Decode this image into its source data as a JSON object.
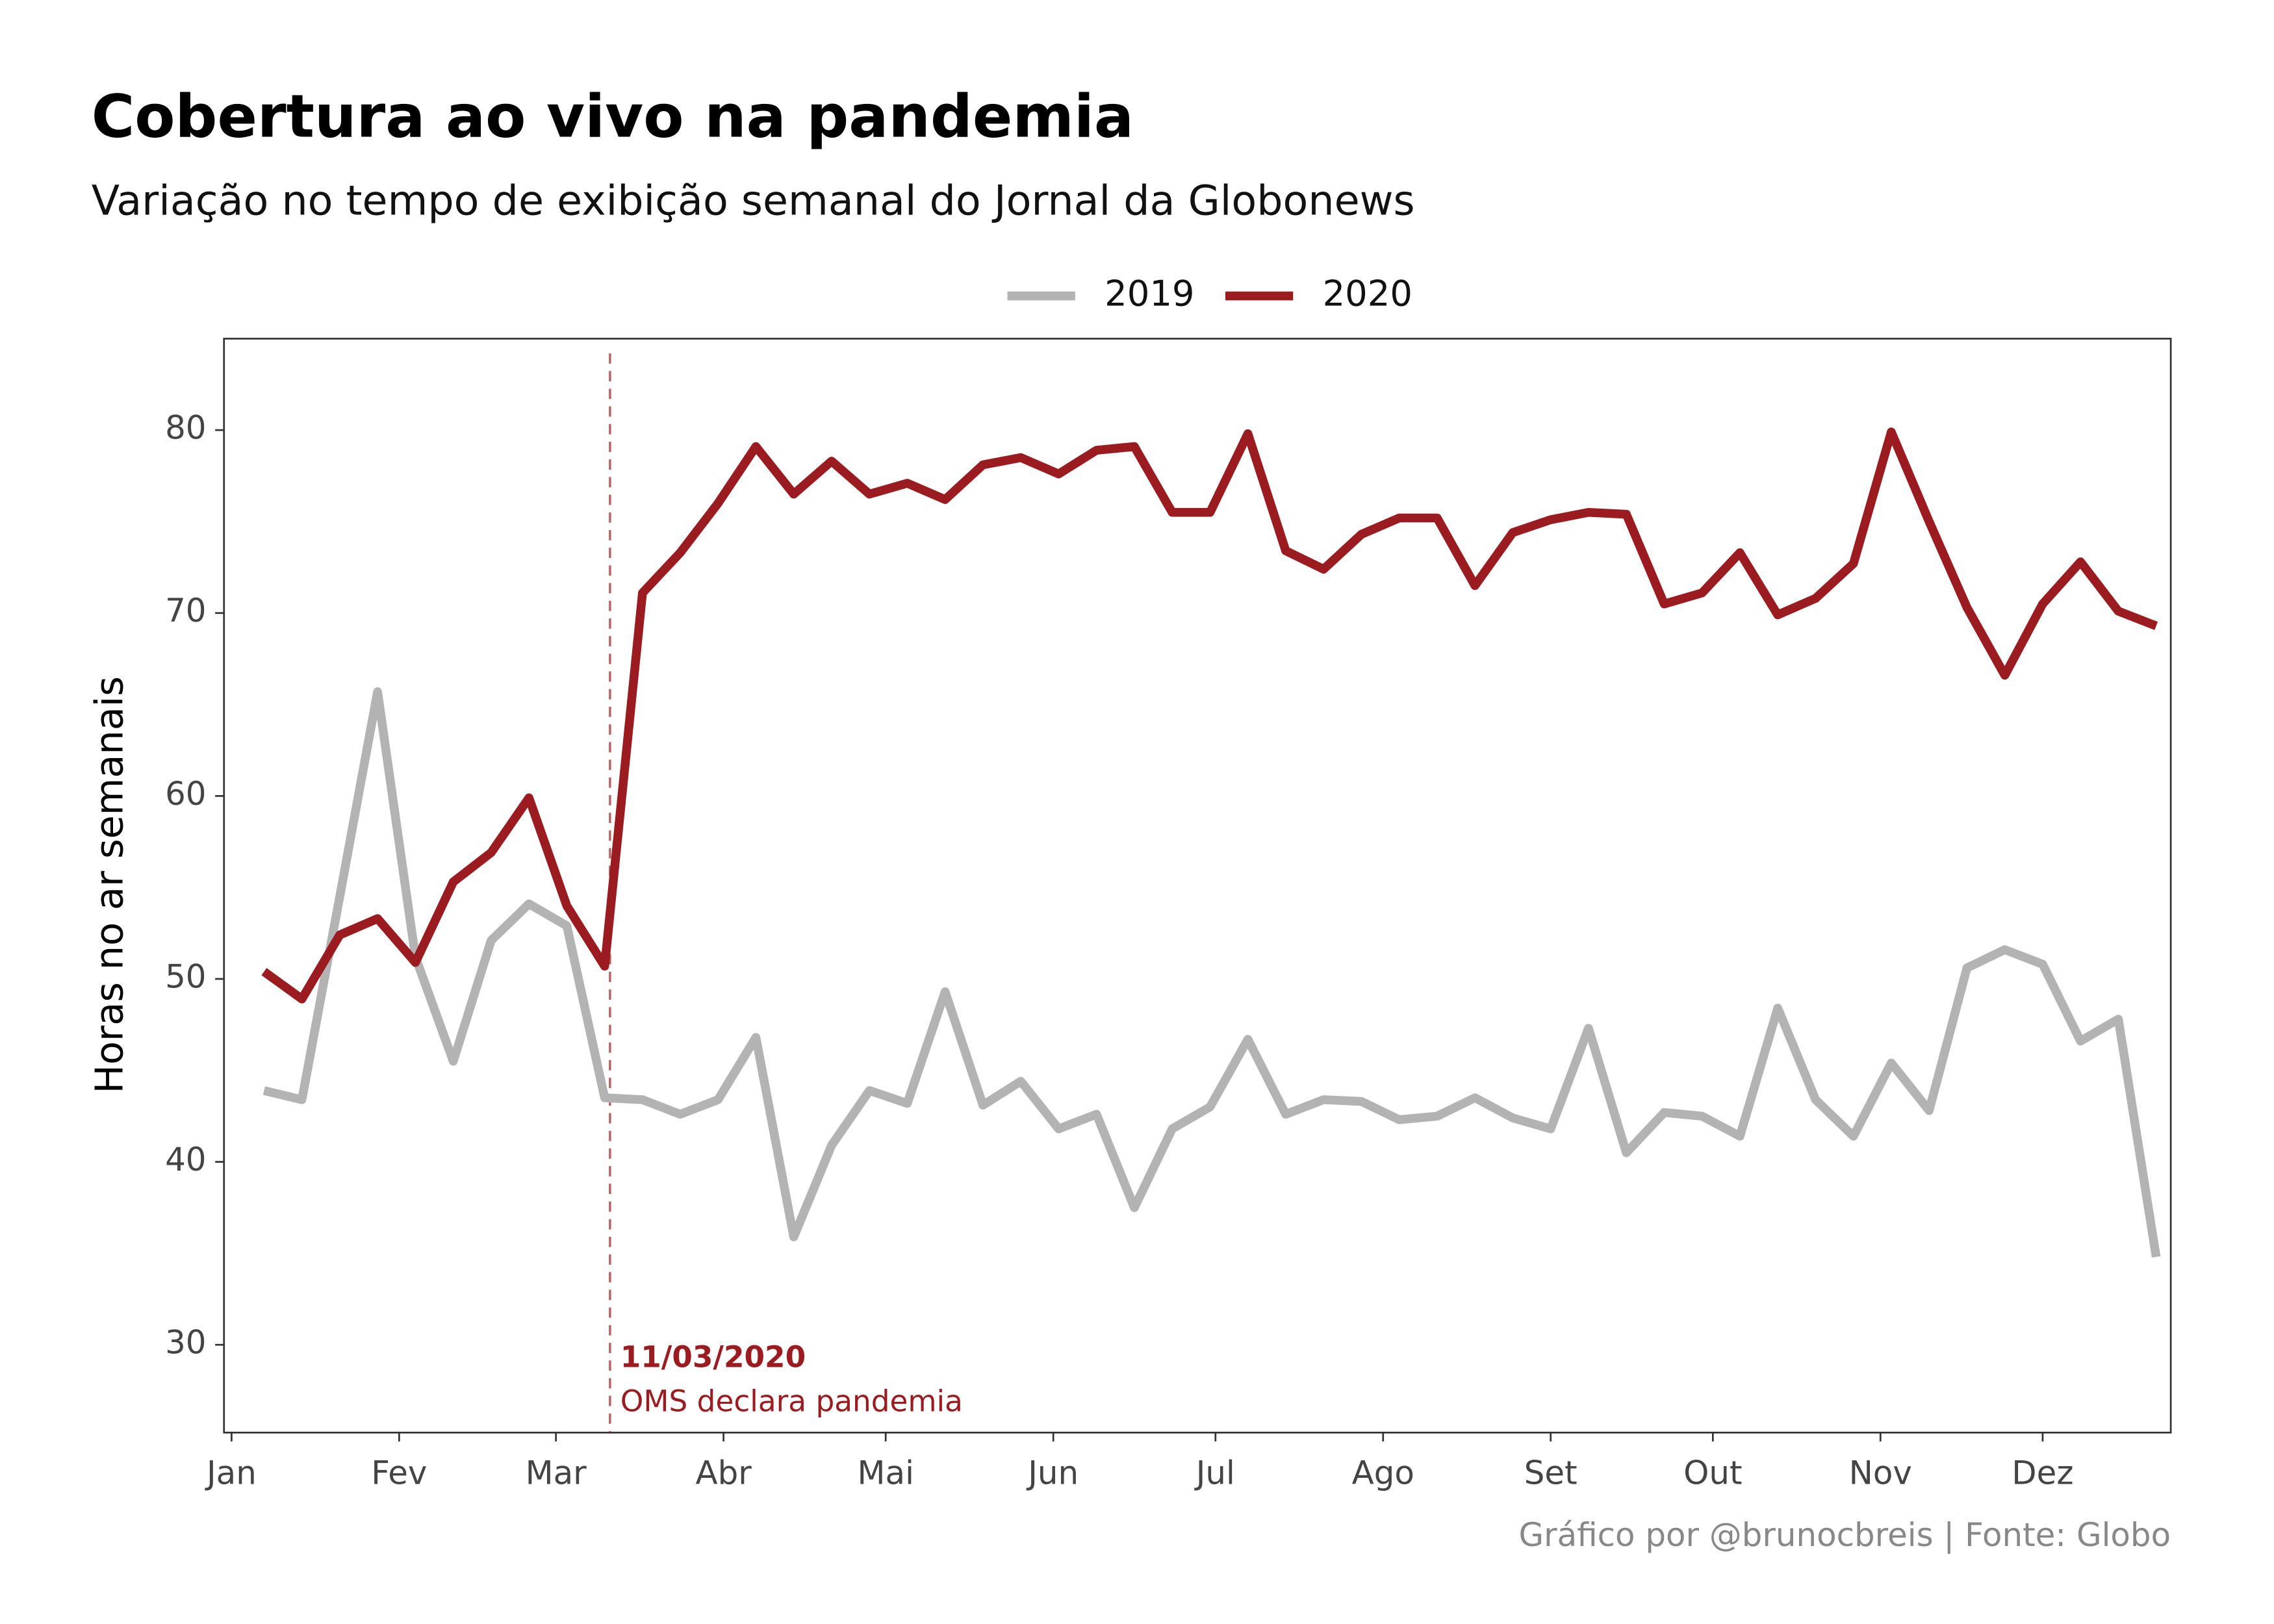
{
  "chart_data": {
    "type": "line",
    "title": "Cobertura ao vivo na pandemia",
    "subtitle": "Variação no tempo de exibição semanal do Jornal da Globonews",
    "y_label": "Horas no ar semanais",
    "caption": "Gráfico por @brunocbreis | Fonte: Globo",
    "legend_position": "top",
    "grid": false,
    "x": [
      6,
      13,
      20,
      27,
      34,
      41,
      48,
      55,
      62,
      69,
      76,
      83,
      90,
      97,
      104,
      111,
      118,
      125,
      132,
      139,
      146,
      153,
      160,
      167,
      174,
      181,
      188,
      195,
      202,
      209,
      216,
      223,
      230,
      237,
      244,
      251,
      258,
      265,
      272,
      279,
      286,
      293,
      300,
      307,
      314,
      321,
      328,
      335,
      342,
      349,
      356
    ],
    "xlim": [
      -1.4,
      358.7
    ],
    "xticks": [
      {
        "value": 0,
        "label": "Jan"
      },
      {
        "value": 31,
        "label": "Fev"
      },
      {
        "value": 60,
        "label": "Mar"
      },
      {
        "value": 91,
        "label": "Abr"
      },
      {
        "value": 121,
        "label": "Mai"
      },
      {
        "value": 152,
        "label": "Jun"
      },
      {
        "value": 182,
        "label": "Jul"
      },
      {
        "value": 213,
        "label": "Ago"
      },
      {
        "value": 244,
        "label": "Set"
      },
      {
        "value": 274,
        "label": "Out"
      },
      {
        "value": 305,
        "label": "Nov"
      },
      {
        "value": 335,
        "label": "Dez"
      }
    ],
    "ylim": [
      25.2,
      85
    ],
    "yticks": [
      30,
      40,
      50,
      60,
      70,
      80
    ],
    "series": [
      {
        "name": "2019",
        "color": "#b3b3b3",
        "values": [
          43.9,
          43.4,
          54.5,
          65.7,
          51.2,
          45.5,
          52.1,
          54.1,
          52.9,
          43.5,
          43.4,
          42.6,
          43.4,
          46.8,
          35.9,
          40.9,
          43.9,
          43.2,
          49.3,
          43.1,
          44.4,
          41.8,
          42.6,
          37.5,
          41.8,
          43.0,
          46.7,
          42.6,
          43.4,
          43.3,
          42.3,
          42.5,
          43.5,
          42.4,
          41.8,
          47.3,
          40.5,
          42.7,
          42.5,
          41.4,
          48.4,
          43.4,
          41.4,
          45.4,
          42.8,
          50.6,
          51.6,
          50.8,
          46.6,
          47.8,
          34.8
        ]
      },
      {
        "name": "2020",
        "color": "#9b1c20",
        "values": [
          50.4,
          48.9,
          52.4,
          53.3,
          50.9,
          55.3,
          56.9,
          59.9,
          54.0,
          50.7,
          71.1,
          73.3,
          76.0,
          79.1,
          76.5,
          78.3,
          76.5,
          77.1,
          76.2,
          78.1,
          78.5,
          77.6,
          78.9,
          79.1,
          75.5,
          75.5,
          79.8,
          73.4,
          72.4,
          74.3,
          75.2,
          75.2,
          71.5,
          74.4,
          75.1,
          75.5,
          75.4,
          70.5,
          71.1,
          73.3,
          69.9,
          70.8,
          72.7,
          79.9,
          75.0,
          70.3,
          66.6,
          70.5,
          72.8,
          70.1,
          69.3
        ]
      }
    ],
    "annotation": {
      "x": 70,
      "date": "11/03/2020",
      "text": "OMS declara pandemia",
      "color": "#9b1c20"
    }
  }
}
